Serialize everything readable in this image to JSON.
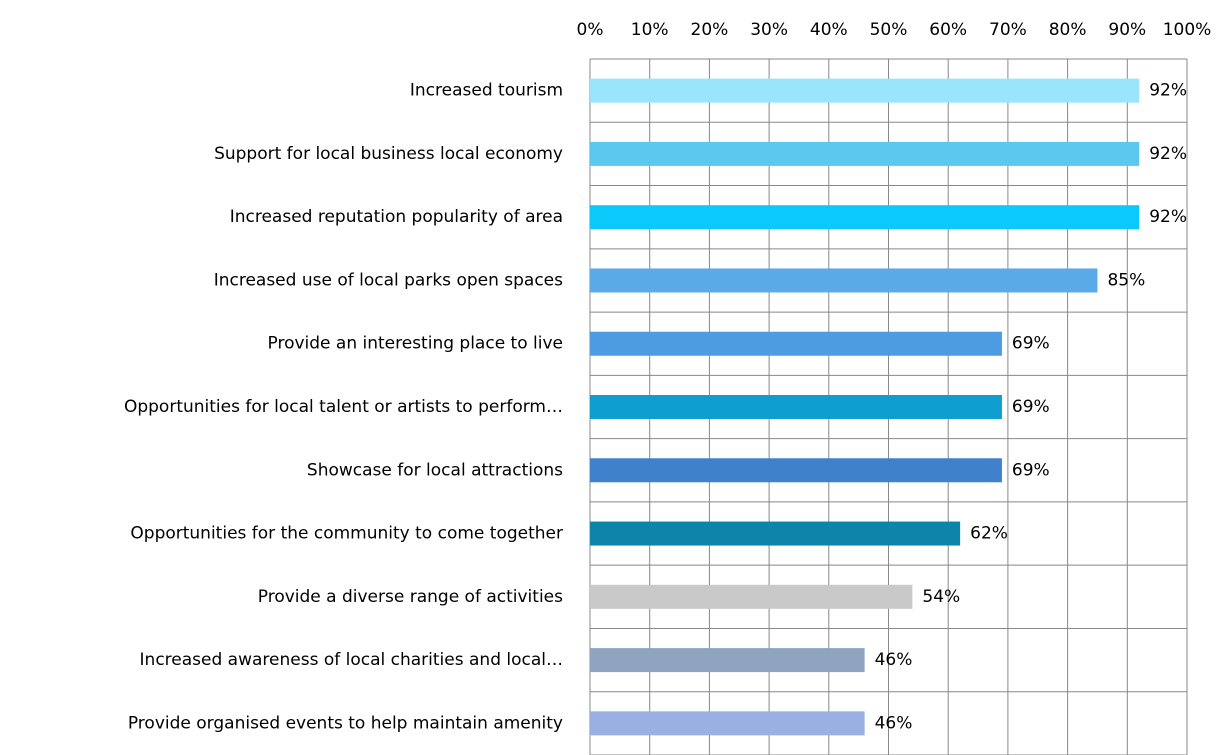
{
  "chart_data": {
    "type": "bar",
    "orientation": "horizontal",
    "categories": [
      "Increased tourism",
      "Support for local business  local economy",
      "Increased reputation  popularity of area",
      "Increased use of local parks  open spaces",
      "Provide an interesting place to live",
      "Opportunities for local talent or artists to perform…",
      "Showcase for local attractions",
      "Opportunities for the community to come together",
      "Provide a diverse range of activities",
      "Increased awareness of local charities and local…",
      "Provide organised events to help maintain amenity"
    ],
    "values": [
      92,
      92,
      92,
      85,
      69,
      69,
      69,
      62,
      54,
      46,
      46
    ],
    "value_labels": [
      "92%",
      "92%",
      "92%",
      "85%",
      "69%",
      "69%",
      "69%",
      "62%",
      "54%",
      "46%",
      "46%"
    ],
    "colors": [
      "#9ae4fc",
      "#5bc8ef",
      "#0cc9fb",
      "#5aaae8",
      "#4d9be0",
      "#0e9ed0",
      "#3f82cb",
      "#0d84aa",
      "#c9c9c9",
      "#8ea4bf",
      "#9ab0e3"
    ],
    "xlim": [
      0,
      100
    ],
    "xticks": [
      {
        "value": 0,
        "label": "0%"
      },
      {
        "value": 10,
        "label": "10%"
      },
      {
        "value": 20,
        "label": "20%"
      },
      {
        "value": 30,
        "label": "30%"
      },
      {
        "value": 40,
        "label": "40%"
      },
      {
        "value": 50,
        "label": "50%"
      },
      {
        "value": 60,
        "label": "60%"
      },
      {
        "value": 70,
        "label": "70%"
      },
      {
        "value": 80,
        "label": "80%"
      },
      {
        "value": 90,
        "label": "90%"
      },
      {
        "value": 100,
        "label": "100%"
      }
    ],
    "grid": true
  }
}
